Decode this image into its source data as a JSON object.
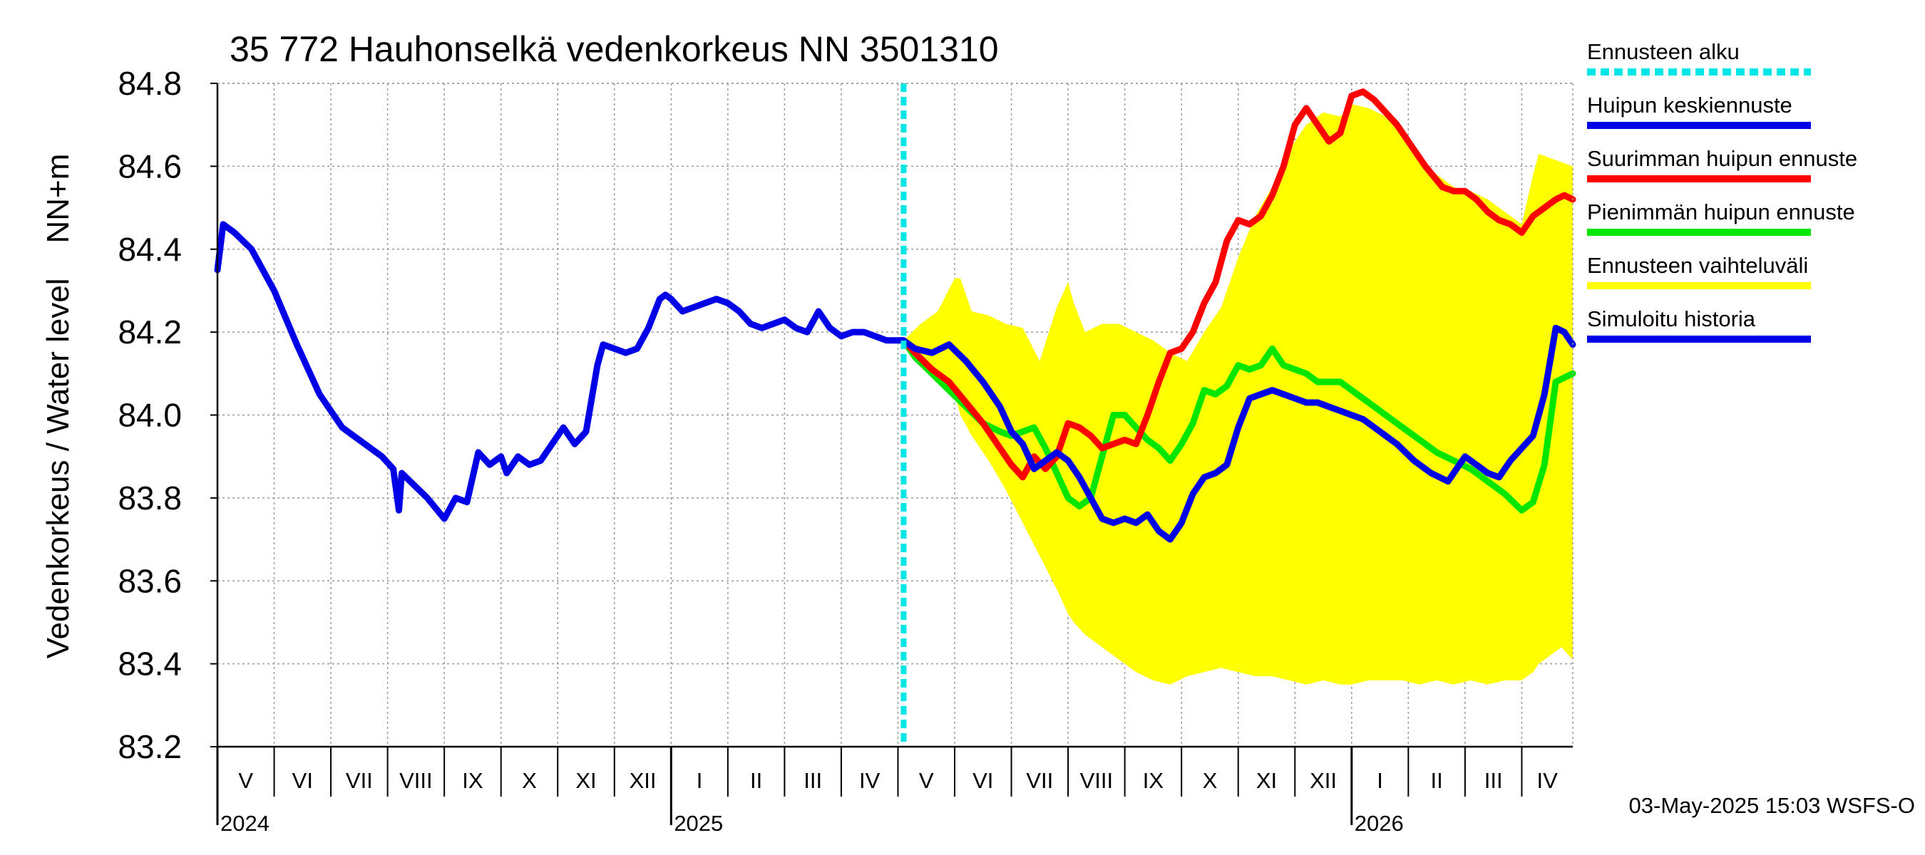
{
  "chart_data": {
    "type": "line",
    "title": "35 772 Hauhonselkä vedenkorkeus NN 3501310",
    "ylabel": "Vedenkorkeus / Water level    NN+m",
    "ylim": [
      83.2,
      84.8
    ],
    "yticks": [
      "83.2",
      "83.4",
      "83.6",
      "83.8",
      "84.0",
      "84.2",
      "84.4",
      "84.6",
      "84.8"
    ],
    "x_unit": "months since 2024-05-01",
    "xlim": [
      0,
      23.9
    ],
    "month_labels": [
      "V",
      "VI",
      "VII",
      "VIII",
      "IX",
      "X",
      "XI",
      "XII",
      "I",
      "II",
      "III",
      "IV",
      "V",
      "VI",
      "VII",
      "VIII",
      "IX",
      "X",
      "XI",
      "XII",
      "I",
      "II",
      "III",
      "IV"
    ],
    "year_labels": [
      {
        "label": "2024",
        "month": 0
      },
      {
        "label": "2025",
        "month": 8
      },
      {
        "label": "2026",
        "month": 20
      }
    ],
    "forecast_start_month": 12.1,
    "grid": true,
    "colors": {
      "history": "#0000e6",
      "median": "#0000e6",
      "max": "#ff0000",
      "min": "#00e600",
      "band": "#ffff00",
      "start": "#00e5e5"
    },
    "series": [
      {
        "name": "Simuloitu historia",
        "x": [
          0,
          0.1,
          0.3,
          0.6,
          1.0,
          1.4,
          1.8,
          2.2,
          2.6,
          2.9,
          3.1,
          3.2,
          3.25,
          3.4,
          3.7,
          4.0,
          4.2,
          4.4,
          4.6,
          4.8,
          5.0,
          5.1,
          5.3,
          5.5,
          5.7,
          5.9,
          6.1,
          6.3,
          6.5,
          6.7,
          6.8,
          7.0,
          7.2,
          7.4,
          7.6,
          7.8,
          7.9,
          8.0,
          8.2,
          8.4,
          8.6,
          8.8,
          9.0,
          9.2,
          9.4,
          9.6,
          9.8,
          10.0,
          10.2,
          10.4,
          10.6,
          10.8,
          11.0,
          11.2,
          11.4,
          11.6,
          11.8,
          12.1
        ],
        "values": [
          84.35,
          84.46,
          84.44,
          84.4,
          84.3,
          84.17,
          84.05,
          83.97,
          83.93,
          83.9,
          83.87,
          83.77,
          83.86,
          83.84,
          83.8,
          83.75,
          83.8,
          83.79,
          83.91,
          83.88,
          83.9,
          83.86,
          83.9,
          83.88,
          83.89,
          83.93,
          83.97,
          83.93,
          83.96,
          84.12,
          84.17,
          84.16,
          84.15,
          84.16,
          84.21,
          84.28,
          84.29,
          84.28,
          84.25,
          84.26,
          84.27,
          84.28,
          84.27,
          84.25,
          84.22,
          84.21,
          84.22,
          84.23,
          84.21,
          84.2,
          84.25,
          84.21,
          84.19,
          84.2,
          84.2,
          84.19,
          84.18,
          84.18
        ]
      },
      {
        "name": "Huipun keskiennuste",
        "x": [
          12.1,
          12.3,
          12.6,
          12.9,
          13.2,
          13.5,
          13.8,
          14.0,
          14.2,
          14.4,
          14.6,
          14.8,
          15.0,
          15.2,
          15.4,
          15.6,
          15.8,
          16.0,
          16.2,
          16.4,
          16.6,
          16.8,
          17.0,
          17.2,
          17.4,
          17.6,
          17.8,
          18.0,
          18.2,
          18.4,
          18.6,
          18.8,
          19.0,
          19.2,
          19.4,
          19.6,
          19.8,
          20.0,
          20.2,
          20.5,
          20.8,
          21.1,
          21.4,
          21.7,
          22.0,
          22.2,
          22.4,
          22.6,
          22.8,
          23.0,
          23.2,
          23.4,
          23.6,
          23.75,
          23.9
        ],
        "values": [
          84.18,
          84.16,
          84.15,
          84.17,
          84.13,
          84.08,
          84.02,
          83.96,
          83.93,
          83.87,
          83.89,
          83.91,
          83.89,
          83.85,
          83.8,
          83.75,
          83.74,
          83.75,
          83.74,
          83.76,
          83.72,
          83.7,
          83.74,
          83.81,
          83.85,
          83.86,
          83.88,
          83.97,
          84.04,
          84.05,
          84.06,
          84.05,
          84.04,
          84.03,
          84.03,
          84.02,
          84.01,
          84.0,
          83.99,
          83.96,
          83.93,
          83.89,
          83.86,
          83.84,
          83.9,
          83.88,
          83.86,
          83.85,
          83.89,
          83.92,
          83.95,
          84.05,
          84.21,
          84.2,
          84.17
        ]
      },
      {
        "name": "Suurimman huipun ennuste",
        "x": [
          12.1,
          12.3,
          12.6,
          12.9,
          13.2,
          13.5,
          13.8,
          14.0,
          14.2,
          14.4,
          14.6,
          14.8,
          15.0,
          15.2,
          15.4,
          15.6,
          15.8,
          16.0,
          16.2,
          16.4,
          16.6,
          16.8,
          17.0,
          17.2,
          17.4,
          17.6,
          17.8,
          18.0,
          18.2,
          18.4,
          18.6,
          18.8,
          19.0,
          19.2,
          19.4,
          19.6,
          19.8,
          20.0,
          20.2,
          20.4,
          20.6,
          20.8,
          21.0,
          21.3,
          21.6,
          21.8,
          22.0,
          22.2,
          22.4,
          22.6,
          22.8,
          23.0,
          23.2,
          23.4,
          23.6,
          23.75,
          23.9
        ],
        "values": [
          84.18,
          84.15,
          84.11,
          84.08,
          84.03,
          83.98,
          83.92,
          83.88,
          83.85,
          83.9,
          83.87,
          83.9,
          83.98,
          83.97,
          83.95,
          83.92,
          83.93,
          83.94,
          83.93,
          84.0,
          84.08,
          84.15,
          84.16,
          84.2,
          84.27,
          84.32,
          84.42,
          84.47,
          84.46,
          84.48,
          84.53,
          84.6,
          84.7,
          84.74,
          84.7,
          84.66,
          84.68,
          84.77,
          84.78,
          84.76,
          84.73,
          84.7,
          84.66,
          84.6,
          84.55,
          84.54,
          84.54,
          84.52,
          84.49,
          84.47,
          84.46,
          84.44,
          84.48,
          84.5,
          84.52,
          84.53,
          84.52
        ]
      },
      {
        "name": "Pienimmän huipun ennuste",
        "x": [
          12.1,
          12.3,
          12.6,
          12.9,
          13.2,
          13.5,
          13.8,
          14.0,
          14.2,
          14.4,
          14.6,
          14.8,
          15.0,
          15.2,
          15.4,
          15.6,
          15.8,
          16.0,
          16.2,
          16.4,
          16.6,
          16.8,
          17.0,
          17.2,
          17.4,
          17.6,
          17.8,
          18.0,
          18.2,
          18.4,
          18.6,
          18.8,
          19.0,
          19.2,
          19.4,
          19.6,
          19.8,
          20.0,
          20.3,
          20.6,
          20.9,
          21.2,
          21.5,
          21.8,
          22.1,
          22.4,
          22.7,
          23.0,
          23.2,
          23.4,
          23.6,
          23.75,
          23.9
        ],
        "values": [
          84.18,
          84.14,
          84.1,
          84.06,
          84.02,
          83.98,
          83.96,
          83.95,
          83.96,
          83.97,
          83.92,
          83.86,
          83.8,
          83.78,
          83.8,
          83.9,
          84.0,
          84.0,
          83.97,
          83.94,
          83.92,
          83.89,
          83.93,
          83.98,
          84.06,
          84.05,
          84.07,
          84.12,
          84.11,
          84.12,
          84.16,
          84.12,
          84.11,
          84.1,
          84.08,
          84.08,
          84.08,
          84.06,
          84.03,
          84.0,
          83.97,
          83.94,
          83.91,
          83.89,
          83.87,
          83.84,
          83.81,
          83.77,
          83.79,
          83.88,
          84.08,
          84.09,
          84.1
        ]
      },
      {
        "name": "Ennusteen vaihteluväli",
        "x": [
          12.1,
          12.4,
          12.7,
          13.0,
          13.1,
          13.3,
          13.6,
          13.9,
          14.2,
          14.5,
          14.8,
          15.0,
          15.1,
          15.3,
          15.6,
          15.9,
          16.2,
          16.5,
          16.8,
          17.1,
          17.4,
          17.7,
          18.0,
          18.3,
          18.6,
          18.9,
          19.2,
          19.5,
          19.8,
          20.0,
          20.3,
          20.6,
          20.9,
          21.2,
          21.5,
          21.8,
          22.1,
          22.4,
          22.7,
          23.0,
          23.2,
          23.3,
          23.5,
          23.7,
          23.9
        ],
        "upper": [
          84.18,
          84.22,
          84.25,
          84.33,
          84.33,
          84.25,
          84.24,
          84.22,
          84.21,
          84.13,
          84.26,
          84.32,
          84.27,
          84.2,
          84.22,
          84.22,
          84.2,
          84.18,
          84.15,
          84.13,
          84.2,
          84.26,
          84.38,
          84.48,
          84.55,
          84.64,
          84.7,
          84.73,
          84.72,
          84.75,
          84.74,
          84.72,
          84.68,
          84.62,
          84.58,
          84.55,
          84.54,
          84.52,
          84.49,
          84.46,
          84.58,
          84.63,
          84.62,
          84.61,
          84.6
        ],
        "lower": [
          84.18,
          84.14,
          84.1,
          84.05,
          84.0,
          83.95,
          83.89,
          83.82,
          83.74,
          83.66,
          83.58,
          83.52,
          83.5,
          83.47,
          83.44,
          83.41,
          83.38,
          83.36,
          83.35,
          83.37,
          83.38,
          83.39,
          83.38,
          83.37,
          83.37,
          83.36,
          83.35,
          83.36,
          83.35,
          83.35,
          83.36,
          83.36,
          83.36,
          83.35,
          83.36,
          83.35,
          83.36,
          83.35,
          83.36,
          83.36,
          83.38,
          83.4,
          83.42,
          83.44,
          83.41
        ]
      }
    ]
  },
  "legend": [
    {
      "label": "Ennusteen alku",
      "key": "start",
      "style": "dashed"
    },
    {
      "label": "Huipun keskiennuste",
      "key": "median",
      "style": "solid"
    },
    {
      "label": "Suurimman huipun ennuste",
      "key": "max",
      "style": "solid"
    },
    {
      "label": "Pienimmän huipun ennuste",
      "key": "min",
      "style": "solid"
    },
    {
      "label": "Ennusteen vaihteluväli",
      "key": "band",
      "style": "solid"
    },
    {
      "label": "Simuloitu historia",
      "key": "history",
      "style": "solid"
    }
  ],
  "footer": "03-May-2025 15:03 WSFS-O"
}
